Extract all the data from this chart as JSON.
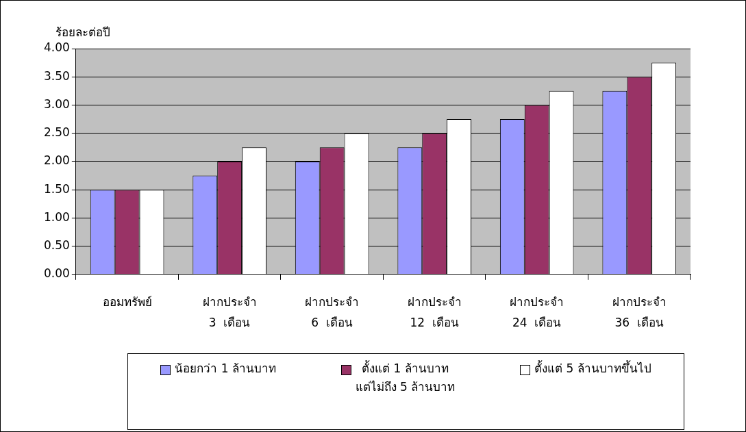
{
  "chart_data": {
    "type": "bar",
    "ylabel": "ร้อยละต่อปี",
    "categories": [
      "ออมทรัพย์",
      "ฝากประจำ\n3  เดือน",
      "ฝากประจำ\n6  เดือน",
      "ฝากประจำ\n12  เดือน",
      "ฝากประจำ\n24  เดือน",
      "ฝากประจำ\n36  เดือน"
    ],
    "series": [
      {
        "name": "น้อยกว่า 1 ล้านบาท",
        "color": "#9999ff",
        "values": [
          1.5,
          1.75,
          2.0,
          2.25,
          2.75,
          3.25
        ]
      },
      {
        "name": "ตั้งแต่ 1 ล้านบาท\nแต่ไม่ถึง 5 ล้านบาท",
        "color": "#993366",
        "values": [
          1.5,
          2.0,
          2.25,
          2.5,
          3.0,
          3.5
        ]
      },
      {
        "name": "ตั้งแต่ 5 ล้านบาทขึ้นไป",
        "color": "#ffffff",
        "values": [
          1.5,
          2.25,
          2.5,
          2.75,
          3.25,
          3.75
        ]
      }
    ],
    "ylim": [
      0,
      4
    ],
    "yticks": [
      {
        "value": 0,
        "label": "0.00"
      },
      {
        "value": 0.5,
        "label": "0.50"
      },
      {
        "value": 1,
        "label": "1.00"
      },
      {
        "value": 1.5,
        "label": "1.50"
      },
      {
        "value": 2,
        "label": "2.00"
      },
      {
        "value": 2.5,
        "label": "2.50"
      },
      {
        "value": 3,
        "label": "3.00"
      },
      {
        "value": 3.5,
        "label": "3.50"
      },
      {
        "value": 4,
        "label": "4.00"
      }
    ],
    "grid": "y",
    "legend": "bottom"
  }
}
